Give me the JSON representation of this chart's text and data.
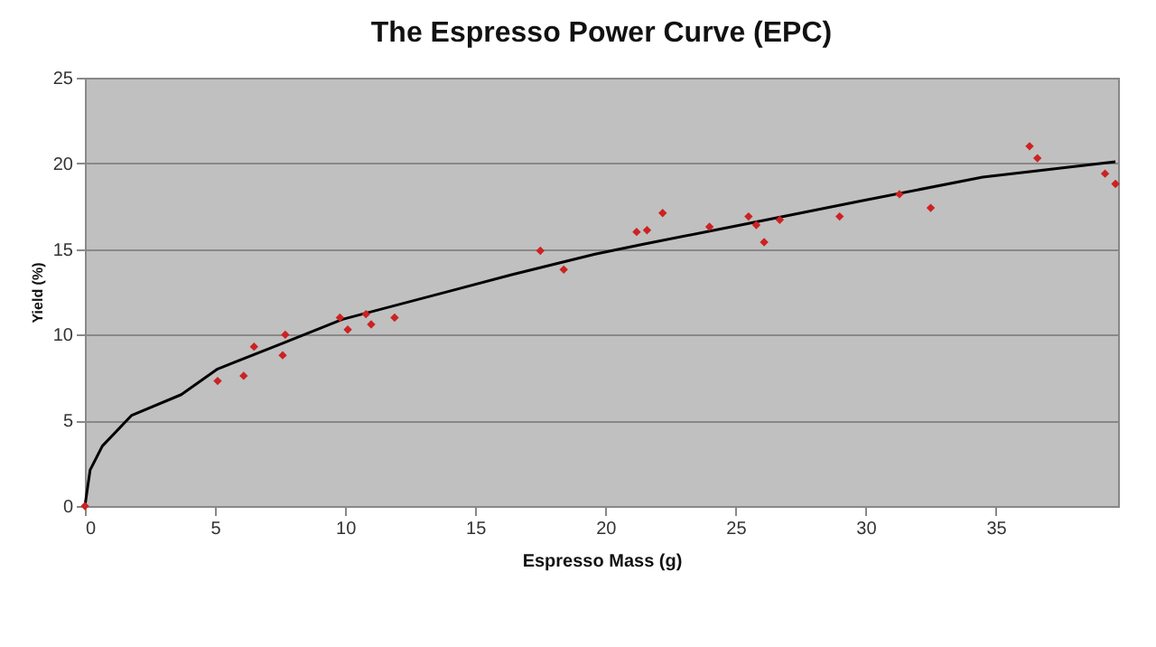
{
  "chart_data": {
    "type": "scatter",
    "title": "The Espresso Power Curve (EPC)",
    "xlabel": "Espresso Mass (g)",
    "ylabel": "Yield (%)",
    "xlim": [
      0,
      39.7
    ],
    "xticks": [
      0,
      5,
      10,
      15,
      20,
      25,
      30,
      35
    ],
    "ylim": [
      0,
      25
    ],
    "yticks": [
      0,
      5,
      10,
      15,
      20,
      25
    ],
    "grid": "y",
    "series": [
      {
        "marker": "diamond",
        "color": "#cc2222",
        "x": [
          0,
          5.1,
          6.1,
          6.5,
          7.6,
          7.7,
          9.8,
          10.1,
          10.8,
          11.0,
          11.9,
          17.5,
          18.4,
          21.2,
          21.6,
          22.2,
          24.0,
          25.5,
          25.8,
          26.1,
          26.7,
          29.0,
          31.3,
          32.5,
          36.3,
          36.6,
          39.2,
          39.6
        ],
        "values": [
          0,
          7.3,
          7.6,
          9.3,
          8.8,
          10.0,
          11.0,
          10.3,
          11.2,
          10.6,
          11.0,
          14.9,
          13.8,
          16.0,
          16.1,
          17.1,
          16.3,
          16.9,
          16.4,
          15.4,
          16.7,
          16.9,
          18.2,
          17.4,
          21.0,
          20.3,
          19.4,
          18.8
        ]
      },
      {
        "type": "line",
        "marker": "none",
        "color": "#000000",
        "x": [
          0,
          0.2,
          0.67,
          1.8,
          3.7,
          5.1,
          7.6,
          9.9,
          12.9,
          16.4,
          19.6,
          21.5,
          25.2,
          29.8,
          34.5,
          39.6
        ],
        "values": [
          0,
          2.1,
          3.5,
          5.3,
          6.5,
          8.0,
          9.5,
          10.9,
          12.1,
          13.5,
          14.7,
          15.3,
          16.4,
          17.8,
          19.2,
          20.1
        ]
      }
    ]
  }
}
